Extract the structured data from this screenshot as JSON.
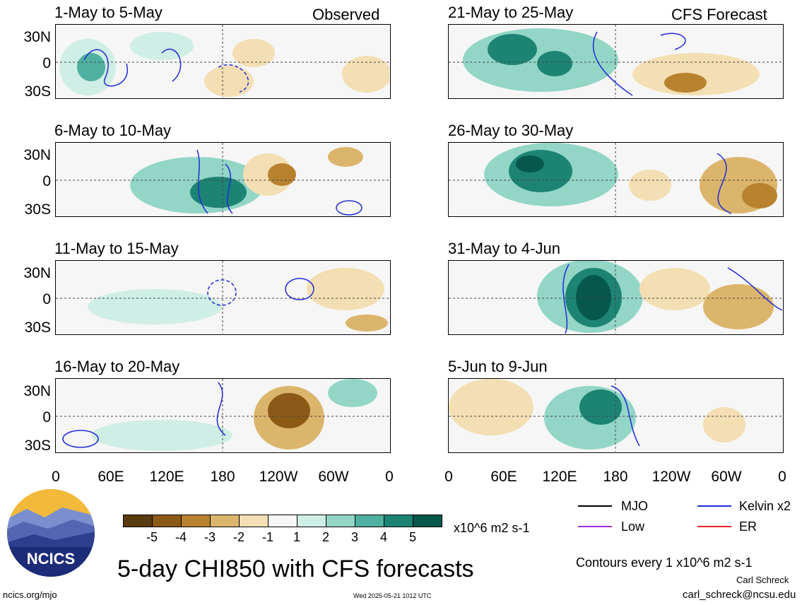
{
  "panels": [
    {
      "title": "1-May to 5-May",
      "tag": "Observed"
    },
    {
      "title": "6-May to 10-May",
      "tag": ""
    },
    {
      "title": "11-May to 15-May",
      "tag": ""
    },
    {
      "title": "16-May to 20-May",
      "tag": ""
    },
    {
      "title": "21-May to 25-May",
      "tag": "CFS Forecast"
    },
    {
      "title": "26-May to 30-May",
      "tag": ""
    },
    {
      "title": "31-May to 4-Jun",
      "tag": ""
    },
    {
      "title": "5-Jun to 9-Jun",
      "tag": ""
    }
  ],
  "lat_labels": [
    "30N",
    "0",
    "30S"
  ],
  "lon_labels": [
    "0",
    "60E",
    "120E",
    "180",
    "120W",
    "60W",
    "0"
  ],
  "colorbar": {
    "colors": [
      "#5a3a0f",
      "#8c5a17",
      "#b9822f",
      "#dcb56d",
      "#f3dfb3",
      "#f6f6f6",
      "#cfeee6",
      "#93d6c6",
      "#4fb0a0",
      "#1d8474",
      "#06584c"
    ],
    "ticks": [
      "-5",
      "-4",
      "-3",
      "-2",
      "-1",
      "1",
      "2",
      "3",
      "4",
      "5"
    ],
    "units": "x10^6 m2 s-1"
  },
  "legend": [
    {
      "label": "MJO",
      "color": "#000000"
    },
    {
      "label": "Kelvin x2",
      "color": "#1f2bd6"
    },
    {
      "label": "Low",
      "color": "#9b30d9"
    },
    {
      "label": "ER",
      "color": "#e8201f"
    }
  ],
  "main_title": "5-day CHI850 with CFS forecasts",
  "contour_note": "Contours every 1 x10^6 m2 s-1",
  "author": "Carl Schreck",
  "email": "carl_schreck@ncsu.edu",
  "website": "ncics.org/mjo",
  "timestamp": "Wed 2025-05-21 1012 UTC",
  "logo_text": "NCICS"
}
